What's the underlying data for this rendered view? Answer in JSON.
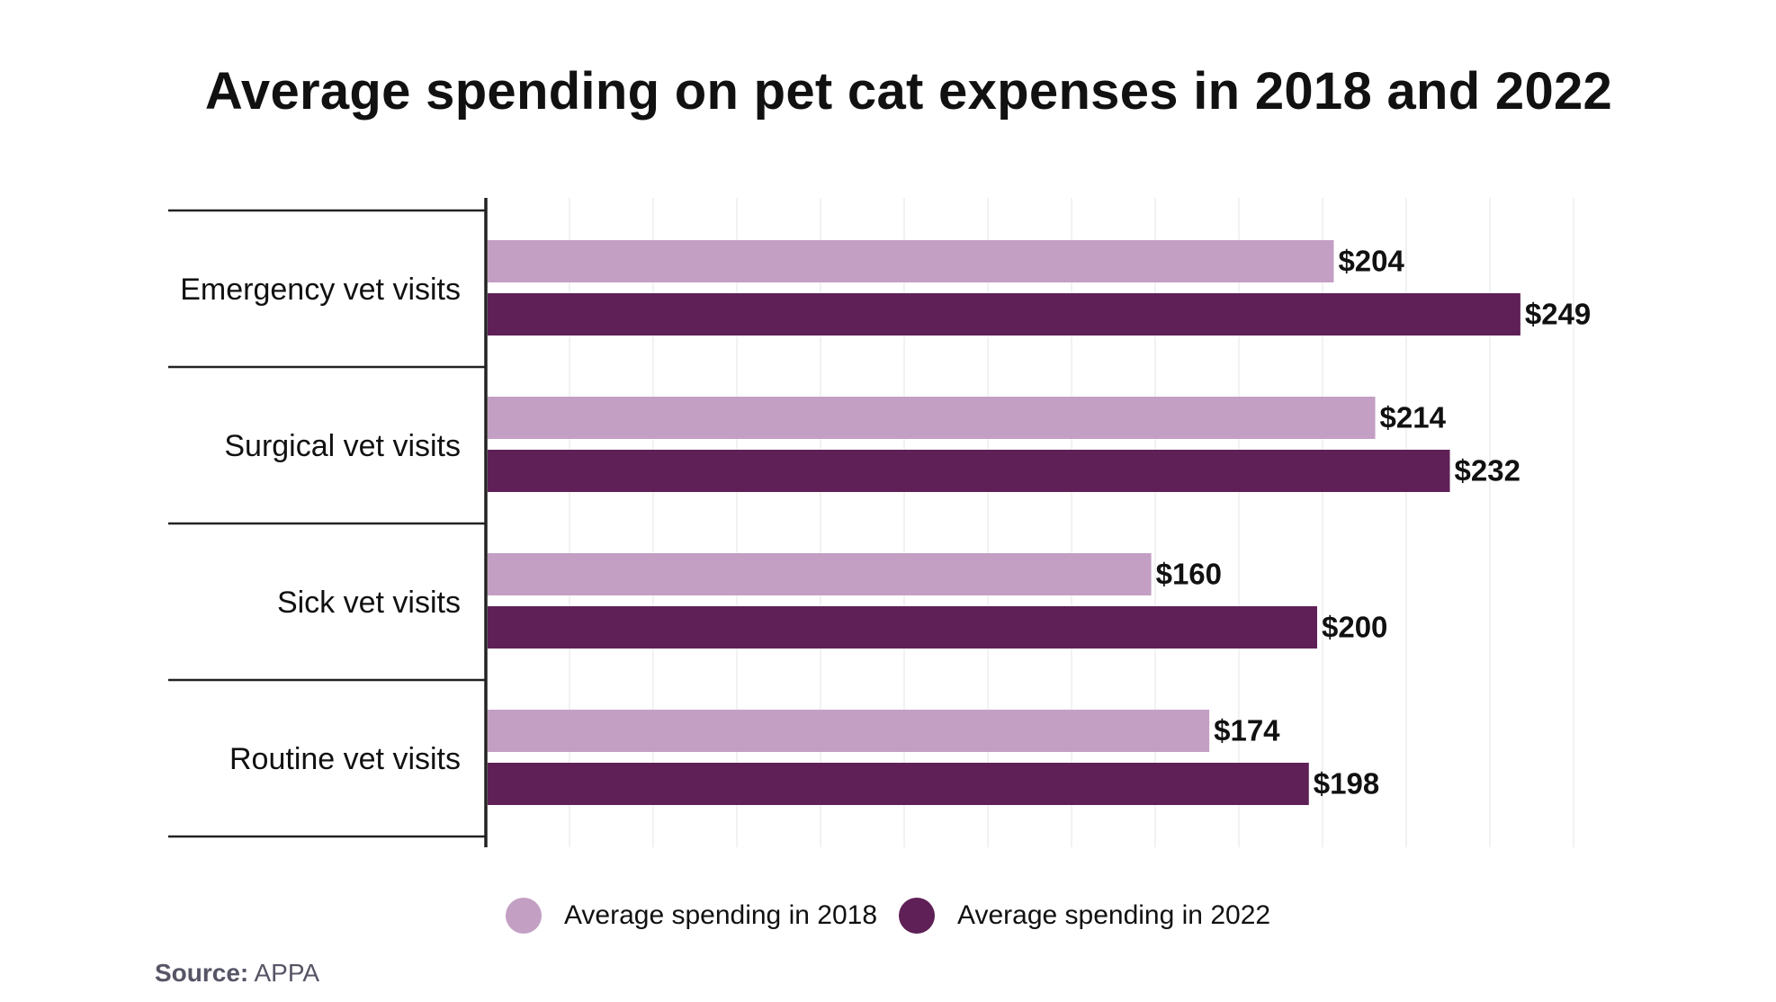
{
  "chart_data": {
    "type": "bar",
    "orientation": "horizontal",
    "title": "Average spending on pet cat expenses in 2018 and 2022",
    "categories": [
      "Emergency vet visits",
      "Surgical vet visits",
      "Sick vet visits",
      "Routine vet visits"
    ],
    "series": [
      {
        "name": "Average spending in 2018",
        "color": "#c39fc4",
        "values": [
          204,
          214,
          160,
          174
        ],
        "labels": [
          "$204",
          "$214",
          "$160",
          "$174"
        ]
      },
      {
        "name": "Average spending in 2022",
        "color": "#5e2056",
        "values": [
          249,
          232,
          200,
          198
        ],
        "labels": [
          "$249",
          "$232",
          "$200",
          "$198"
        ]
      }
    ],
    "xlim": [
      0,
      280
    ],
    "grid": true,
    "legend_position": "bottom-center",
    "xlabel": "",
    "ylabel": ""
  },
  "source": {
    "label": "Source:",
    "value": "APPA"
  }
}
